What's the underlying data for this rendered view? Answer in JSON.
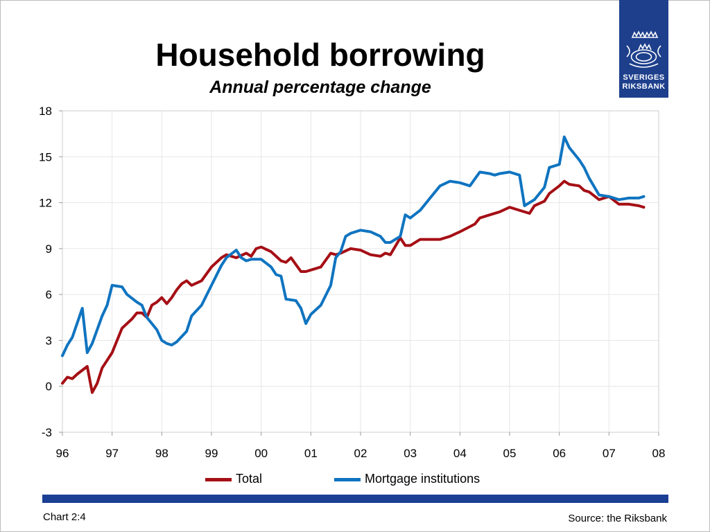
{
  "title": "Household borrowing",
  "subtitle": "Annual percentage change",
  "logo": {
    "line1": "SVERIGES",
    "line2": "RIKSBANK"
  },
  "footer": {
    "chart_id": "Chart 2:4",
    "source": "Source: the Riksbank"
  },
  "colors": {
    "total": "#a50f15",
    "mortgage": "#0f74c0",
    "brand_bar": "#1a3f94",
    "logo_bg": "#1d3f8c"
  },
  "chart_data": {
    "type": "line",
    "xlabel": "",
    "ylabel": "",
    "ylim": [
      -3,
      18
    ],
    "yticks": [
      -3,
      0,
      3,
      6,
      9,
      12,
      15,
      18
    ],
    "xlim": [
      96,
      108
    ],
    "xtick_labels": [
      "96",
      "97",
      "98",
      "99",
      "00",
      "01",
      "02",
      "03",
      "04",
      "05",
      "06",
      "07",
      "08"
    ],
    "grid": true,
    "legend_position": "bottom",
    "series": [
      {
        "name": "Total",
        "color": "#a50f15",
        "x": [
          96.0,
          96.1,
          96.2,
          96.3,
          96.5,
          96.6,
          96.7,
          96.8,
          96.9,
          97.0,
          97.2,
          97.4,
          97.5,
          97.6,
          97.7,
          97.8,
          97.9,
          98.0,
          98.1,
          98.2,
          98.3,
          98.4,
          98.5,
          98.6,
          98.8,
          99.0,
          99.2,
          99.3,
          99.5,
          99.7,
          99.8,
          99.9,
          100.0,
          100.2,
          100.4,
          100.5,
          100.6,
          100.8,
          100.9,
          101.0,
          101.2,
          101.4,
          101.5,
          101.6,
          101.8,
          102.0,
          102.2,
          102.4,
          102.5,
          102.6,
          102.8,
          102.9,
          103.0,
          103.2,
          103.4,
          103.6,
          103.8,
          104.0,
          104.3,
          104.4,
          104.6,
          104.8,
          105.0,
          105.2,
          105.4,
          105.5,
          105.7,
          105.8,
          106.0,
          106.1,
          106.2,
          106.4,
          106.5,
          106.6,
          106.8,
          107.0,
          107.2,
          107.4,
          107.6,
          107.7
        ],
        "y": [
          0.2,
          0.6,
          0.5,
          0.8,
          1.3,
          -0.4,
          0.2,
          1.2,
          1.7,
          2.2,
          3.8,
          4.4,
          4.8,
          4.8,
          4.5,
          5.3,
          5.5,
          5.8,
          5.4,
          5.8,
          6.3,
          6.7,
          6.9,
          6.6,
          6.9,
          7.8,
          8.4,
          8.6,
          8.4,
          8.7,
          8.5,
          9.0,
          9.1,
          8.8,
          8.2,
          8.1,
          8.4,
          7.5,
          7.5,
          7.6,
          7.8,
          8.7,
          8.6,
          8.7,
          9.0,
          8.9,
          8.6,
          8.5,
          8.7,
          8.6,
          9.7,
          9.2,
          9.2,
          9.6,
          9.6,
          9.6,
          9.8,
          10.1,
          10.6,
          11.0,
          11.2,
          11.4,
          11.7,
          11.5,
          11.3,
          11.8,
          12.1,
          12.6,
          13.1,
          13.4,
          13.2,
          13.1,
          12.8,
          12.7,
          12.2,
          12.4,
          11.9,
          11.9,
          11.8,
          11.7
        ],
        "values_note": ""
      },
      {
        "name": "Mortgage institutions",
        "color": "#0f74c0",
        "x": [
          96.0,
          96.1,
          96.2,
          96.4,
          96.5,
          96.6,
          96.8,
          96.9,
          97.0,
          97.2,
          97.3,
          97.5,
          97.6,
          97.7,
          97.9,
          98.0,
          98.1,
          98.2,
          98.3,
          98.5,
          98.6,
          98.8,
          99.0,
          99.2,
          99.3,
          99.5,
          99.6,
          99.7,
          99.8,
          100.0,
          100.2,
          100.3,
          100.4,
          100.5,
          100.7,
          100.8,
          100.9,
          101.0,
          101.2,
          101.4,
          101.5,
          101.6,
          101.7,
          101.8,
          102.0,
          102.2,
          102.4,
          102.5,
          102.6,
          102.8,
          102.9,
          103.0,
          103.2,
          103.4,
          103.6,
          103.8,
          104.0,
          104.2,
          104.4,
          104.6,
          104.7,
          104.8,
          105.0,
          105.2,
          105.3,
          105.5,
          105.7,
          105.8,
          106.0,
          106.1,
          106.2,
          106.4,
          106.5,
          106.6,
          106.8,
          107.0,
          107.2,
          107.4,
          107.6,
          107.7
        ],
        "y": [
          2.0,
          2.7,
          3.2,
          5.1,
          2.2,
          2.8,
          4.6,
          5.3,
          6.6,
          6.5,
          6.0,
          5.5,
          5.3,
          4.5,
          3.7,
          3.0,
          2.8,
          2.7,
          2.9,
          3.6,
          4.6,
          5.3,
          6.6,
          7.9,
          8.4,
          8.9,
          8.4,
          8.2,
          8.3,
          8.3,
          7.8,
          7.3,
          7.2,
          5.7,
          5.6,
          5.1,
          4.1,
          4.7,
          5.3,
          6.6,
          8.4,
          8.8,
          9.8,
          10.0,
          10.2,
          10.1,
          9.8,
          9.4,
          9.4,
          9.8,
          11.2,
          11.0,
          11.5,
          12.3,
          13.1,
          13.4,
          13.3,
          13.1,
          14.0,
          13.9,
          13.8,
          13.9,
          14.0,
          13.8,
          11.8,
          12.2,
          13.0,
          14.3,
          14.5,
          16.3,
          15.6,
          14.8,
          14.3,
          13.6,
          12.5,
          12.4,
          12.2,
          12.3,
          12.3,
          12.4
        ],
        "values_note": ""
      }
    ]
  }
}
